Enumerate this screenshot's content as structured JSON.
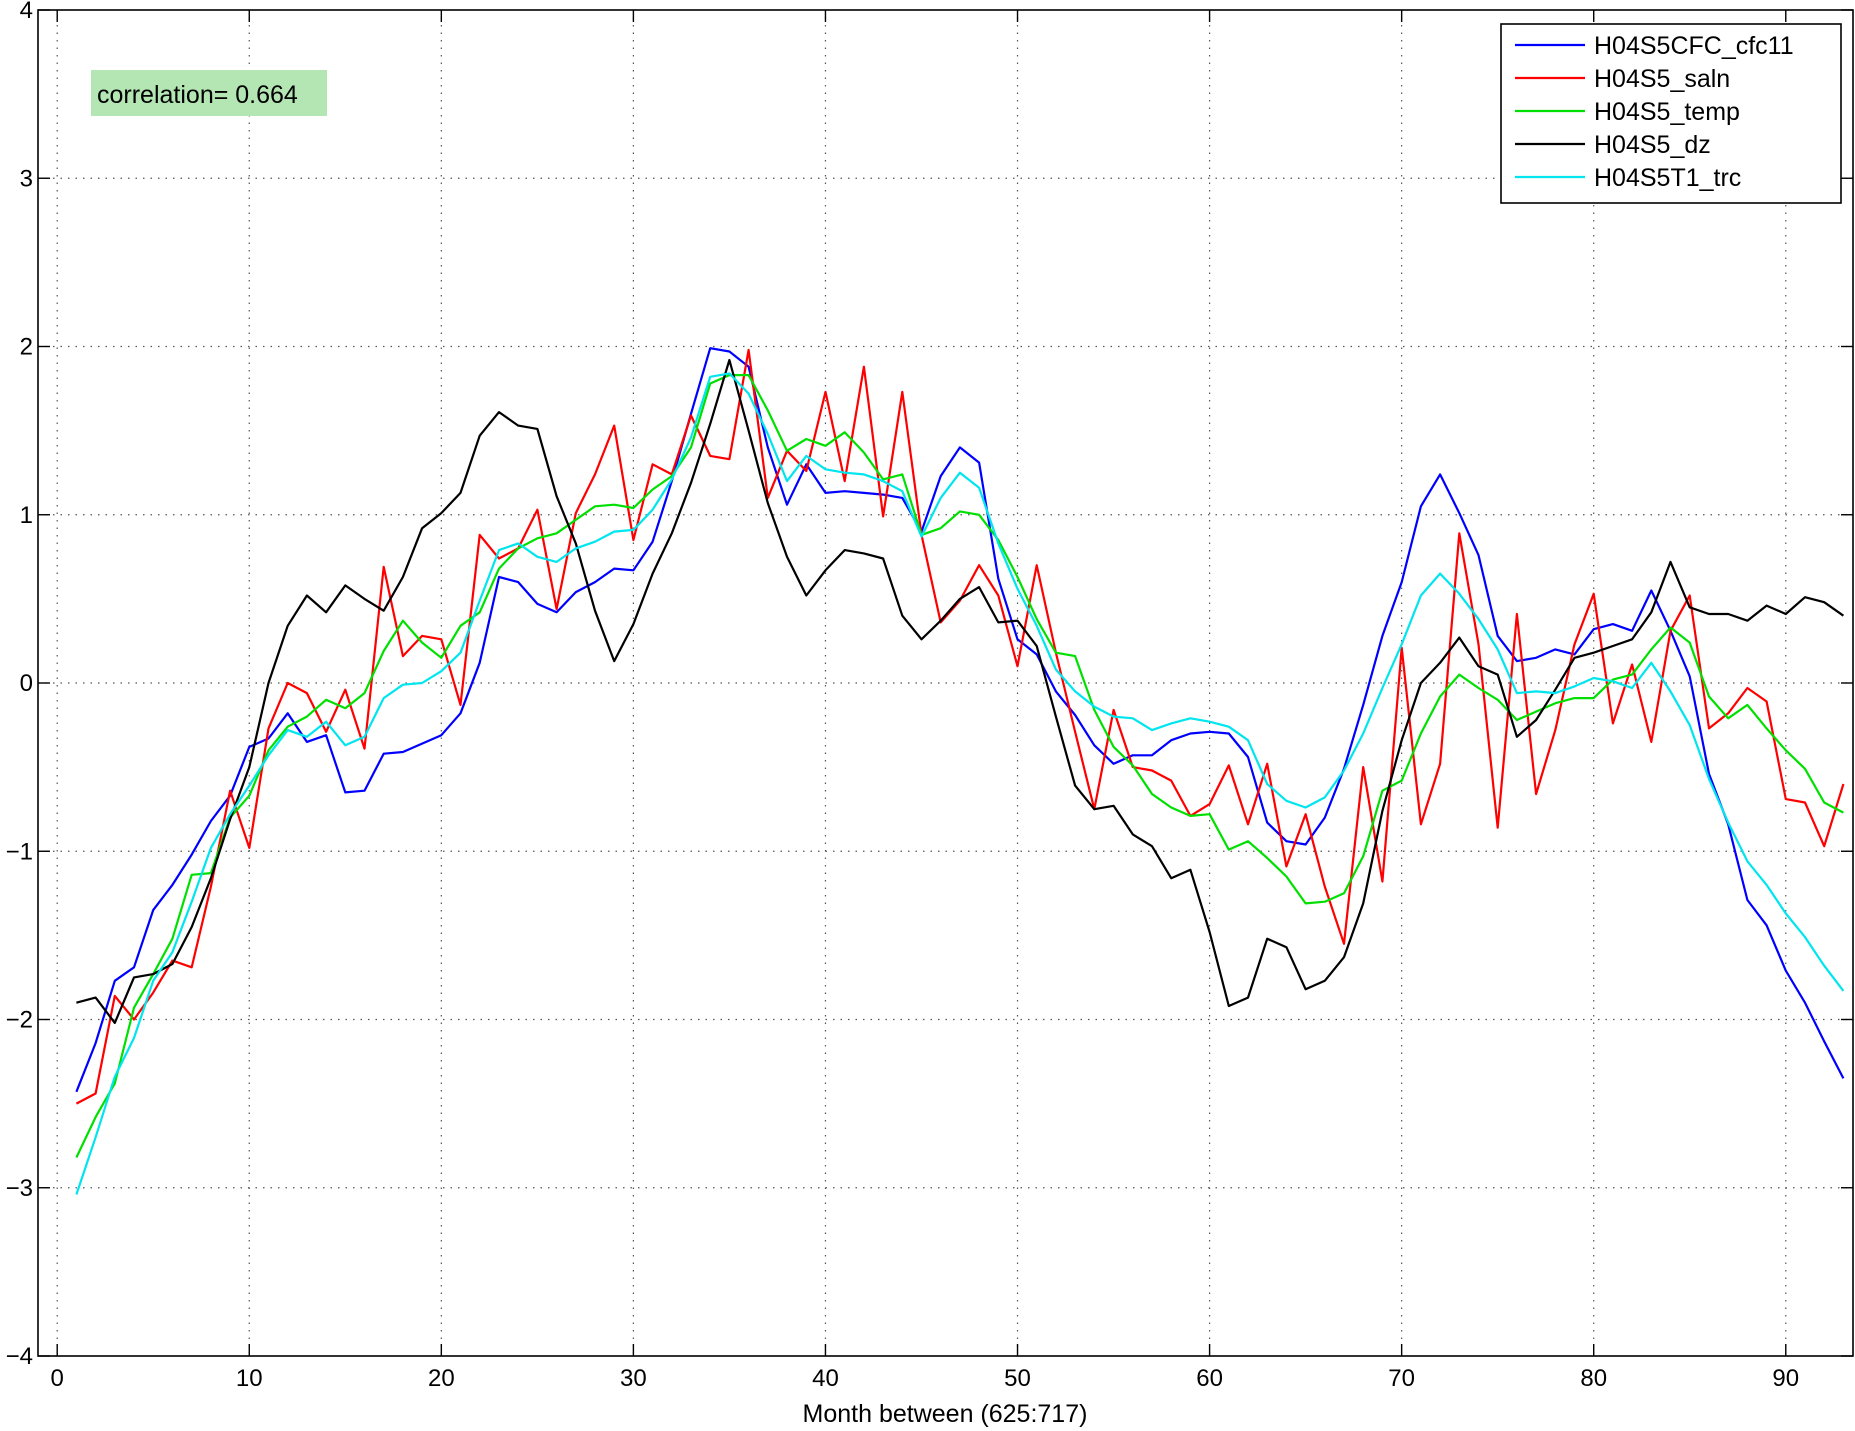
{
  "chart_data": {
    "type": "line",
    "xlabel": "Month between (625:717)",
    "ylabel": "",
    "xlim": [
      -1,
      93.5
    ],
    "ylim": [
      -4,
      4
    ],
    "xticks": [
      0,
      10,
      20,
      30,
      40,
      50,
      60,
      70,
      80,
      90
    ],
    "yticks": [
      -4,
      -3,
      -2,
      -1,
      0,
      1,
      2,
      3,
      4
    ],
    "xtick_labels": [
      "0",
      "10",
      "20",
      "30",
      "40",
      "50",
      "60",
      "70",
      "80",
      "90"
    ],
    "ytick_labels": [
      "−4",
      "−3",
      "−2",
      "−1",
      "0",
      "1",
      "2",
      "3",
      "4"
    ],
    "grid": true,
    "legend_position": "top-right",
    "annotation": "correlation= 0.664",
    "annotation_color": "#b3e6b3",
    "x": [
      1,
      2,
      3,
      4,
      5,
      6,
      7,
      8,
      9,
      10,
      11,
      12,
      13,
      14,
      15,
      16,
      17,
      18,
      19,
      20,
      21,
      22,
      23,
      24,
      25,
      26,
      27,
      28,
      29,
      30,
      31,
      32,
      33,
      34,
      35,
      36,
      37,
      38,
      39,
      40,
      41,
      42,
      43,
      44,
      45,
      46,
      47,
      48,
      49,
      50,
      51,
      52,
      53,
      54,
      55,
      56,
      57,
      58,
      59,
      60,
      61,
      62,
      63,
      64,
      65,
      66,
      67,
      68,
      69,
      70,
      71,
      72,
      73,
      74,
      75,
      76,
      77,
      78,
      79,
      80,
      81,
      82,
      83,
      84,
      85,
      86,
      87,
      88,
      89,
      90,
      91,
      92,
      93
    ],
    "series": [
      {
        "name": "H04S5CFC_cfc11",
        "color": "#0000ff",
        "values": [
          -2.43,
          -2.14,
          -1.77,
          -1.69,
          -1.35,
          -1.2,
          -1.02,
          -0.82,
          -0.67,
          -0.38,
          -0.33,
          -0.18,
          -0.35,
          -0.31,
          -0.65,
          -0.64,
          -0.42,
          -0.41,
          -0.36,
          -0.31,
          -0.18,
          0.12,
          0.63,
          0.6,
          0.47,
          0.42,
          0.54,
          0.6,
          0.68,
          0.67,
          0.84,
          1.2,
          1.6,
          1.99,
          1.97,
          1.88,
          1.4,
          1.06,
          1.3,
          1.13,
          1.14,
          1.13,
          1.12,
          1.1,
          0.9,
          1.23,
          1.4,
          1.31,
          0.62,
          0.26,
          0.17,
          -0.05,
          -0.19,
          -0.37,
          -0.48,
          -0.43,
          -0.43,
          -0.34,
          -0.3,
          -0.29,
          -0.3,
          -0.44,
          -0.83,
          -0.94,
          -0.96,
          -0.8,
          -0.51,
          -0.13,
          0.28,
          0.6,
          1.05,
          1.24,
          1.01,
          0.76,
          0.28,
          0.13,
          0.15,
          0.2,
          0.17,
          0.32,
          0.35,
          0.31,
          0.55,
          0.31,
          0.04,
          -0.54,
          -0.84,
          -1.29,
          -1.44,
          -1.71,
          -1.9,
          -2.13,
          -2.35
        ]
      },
      {
        "name": "H04S5_saln",
        "color": "#ff0000",
        "values": [
          -2.5,
          -2.44,
          -1.86,
          -2.0,
          -1.84,
          -1.65,
          -1.69,
          -1.21,
          -0.64,
          -0.98,
          -0.27,
          0.0,
          -0.06,
          -0.29,
          -0.04,
          -0.39,
          0.69,
          0.16,
          0.28,
          0.26,
          -0.13,
          0.88,
          0.74,
          0.8,
          1.03,
          0.44,
          1.01,
          1.24,
          1.53,
          0.85,
          1.3,
          1.24,
          1.59,
          1.35,
          1.33,
          1.98,
          1.1,
          1.38,
          1.26,
          1.73,
          1.2,
          1.88,
          0.99,
          1.73,
          0.88,
          0.36,
          0.49,
          0.7,
          0.52,
          0.1,
          0.7,
          0.18,
          -0.29,
          -0.75,
          -0.16,
          -0.5,
          -0.52,
          -0.58,
          -0.79,
          -0.72,
          -0.49,
          -0.84,
          -0.48,
          -1.09,
          -0.78,
          -1.21,
          -1.55,
          -0.5,
          -1.18,
          0.21,
          -0.84,
          -0.48,
          0.89,
          0.23,
          -0.86,
          0.41,
          -0.66,
          -0.28,
          0.23,
          0.53,
          -0.24,
          0.11,
          -0.35,
          0.31,
          0.52,
          -0.27,
          -0.18,
          -0.03,
          -0.11,
          -0.69,
          -0.71,
          -0.97,
          -0.6
        ]
      },
      {
        "name": "H04S5_temp",
        "color": "#00e000",
        "values": [
          -2.82,
          -2.58,
          -2.38,
          -1.93,
          -1.73,
          -1.52,
          -1.14,
          -1.13,
          -0.8,
          -0.67,
          -0.4,
          -0.26,
          -0.2,
          -0.1,
          -0.15,
          -0.06,
          0.19,
          0.37,
          0.24,
          0.15,
          0.34,
          0.42,
          0.68,
          0.8,
          0.86,
          0.89,
          0.97,
          1.05,
          1.06,
          1.04,
          1.15,
          1.23,
          1.4,
          1.78,
          1.83,
          1.83,
          1.62,
          1.38,
          1.45,
          1.41,
          1.49,
          1.37,
          1.21,
          1.24,
          0.88,
          0.92,
          1.02,
          1.0,
          0.85,
          0.63,
          0.38,
          0.18,
          0.16,
          -0.16,
          -0.38,
          -0.49,
          -0.66,
          -0.74,
          -0.79,
          -0.78,
          -0.99,
          -0.94,
          -1.04,
          -1.15,
          -1.31,
          -1.3,
          -1.25,
          -1.03,
          -0.64,
          -0.58,
          -0.3,
          -0.08,
          0.05,
          -0.03,
          -0.1,
          -0.22,
          -0.17,
          -0.12,
          -0.09,
          -0.09,
          0.02,
          0.05,
          0.2,
          0.33,
          0.24,
          -0.08,
          -0.21,
          -0.13,
          -0.27,
          -0.4,
          -0.51,
          -0.71,
          -0.77
        ]
      },
      {
        "name": "H04S5_dz",
        "color": "#000000",
        "values": [
          -1.9,
          -1.87,
          -2.02,
          -1.75,
          -1.73,
          -1.67,
          -1.45,
          -1.16,
          -0.81,
          -0.5,
          0.0,
          0.34,
          0.52,
          0.42,
          0.58,
          0.5,
          0.43,
          0.63,
          0.92,
          1.01,
          1.13,
          1.47,
          1.61,
          1.53,
          1.51,
          1.11,
          0.83,
          0.43,
          0.13,
          0.35,
          0.65,
          0.89,
          1.19,
          1.54,
          1.92,
          1.5,
          1.07,
          0.75,
          0.52,
          0.67,
          0.79,
          0.77,
          0.74,
          0.4,
          0.26,
          0.37,
          0.5,
          0.57,
          0.36,
          0.37,
          0.22,
          -0.2,
          -0.61,
          -0.75,
          -0.73,
          -0.9,
          -0.97,
          -1.16,
          -1.11,
          -1.48,
          -1.92,
          -1.87,
          -1.52,
          -1.57,
          -1.82,
          -1.77,
          -1.63,
          -1.31,
          -0.76,
          -0.34,
          0.0,
          0.12,
          0.27,
          0.1,
          0.05,
          -0.32,
          -0.22,
          -0.04,
          0.15,
          0.18,
          0.22,
          0.26,
          0.42,
          0.72,
          0.45,
          0.41,
          0.41,
          0.37,
          0.46,
          0.41,
          0.51,
          0.48,
          0.4
        ]
      },
      {
        "name": "H04S5T1_trc",
        "color": "#00e5ee",
        "values": [
          -3.04,
          -2.7,
          -2.34,
          -2.11,
          -1.77,
          -1.6,
          -1.3,
          -0.98,
          -0.78,
          -0.61,
          -0.43,
          -0.28,
          -0.32,
          -0.23,
          -0.37,
          -0.32,
          -0.09,
          -0.01,
          0.0,
          0.07,
          0.18,
          0.49,
          0.79,
          0.83,
          0.75,
          0.72,
          0.8,
          0.84,
          0.9,
          0.91,
          1.03,
          1.21,
          1.46,
          1.82,
          1.84,
          1.72,
          1.48,
          1.2,
          1.35,
          1.27,
          1.25,
          1.24,
          1.2,
          1.14,
          0.87,
          1.1,
          1.25,
          1.16,
          0.83,
          0.56,
          0.34,
          0.08,
          -0.05,
          -0.14,
          -0.2,
          -0.21,
          -0.28,
          -0.24,
          -0.21,
          -0.23,
          -0.26,
          -0.34,
          -0.6,
          -0.7,
          -0.74,
          -0.68,
          -0.52,
          -0.3,
          -0.03,
          0.23,
          0.52,
          0.65,
          0.53,
          0.38,
          0.2,
          -0.06,
          -0.05,
          -0.06,
          -0.02,
          0.03,
          0.01,
          -0.03,
          0.12,
          -0.05,
          -0.25,
          -0.57,
          -0.83,
          -1.06,
          -1.2,
          -1.37,
          -1.51,
          -1.68,
          -1.83
        ]
      }
    ]
  }
}
